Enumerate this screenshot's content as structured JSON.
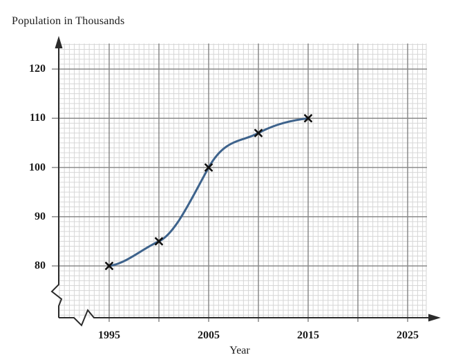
{
  "chart_data": {
    "type": "line",
    "title": "Population in Thousands",
    "xlabel": "Year",
    "x": [
      1995,
      2000,
      2005,
      2010,
      2015
    ],
    "values": [
      80,
      85,
      100,
      107,
      110
    ],
    "marker": "x",
    "x_tick_labels": [
      "1995",
      "2005",
      "2015",
      "2025"
    ],
    "x_tick_years": [
      1995,
      2005,
      2015,
      2025
    ],
    "x_grid_years": [
      1995,
      2000,
      2005,
      2010,
      2015,
      2020,
      2025
    ],
    "y_tick_labels": [
      "120",
      "110",
      "100",
      "90",
      "80"
    ],
    "y_tick_values": [
      120,
      110,
      100,
      90,
      80
    ],
    "y_grid_values": [
      120,
      110,
      100,
      90,
      80
    ],
    "xlim_shown": [
      1990,
      2027
    ],
    "ylim_shown": [
      73,
      125
    ],
    "axis_breaks": {
      "y_axis": true,
      "x_axis": true
    },
    "grid": "fine graph paper, major lines every 5 years and every 10 thousand",
    "colors": {
      "line": "#3e638c",
      "marker": "#111111",
      "major_grid": "#8a8a8a",
      "minor_grid": "#d6d6d6",
      "axis": "#2b2b2b",
      "text": "#1b1b1b",
      "background": "#ffffff"
    }
  }
}
